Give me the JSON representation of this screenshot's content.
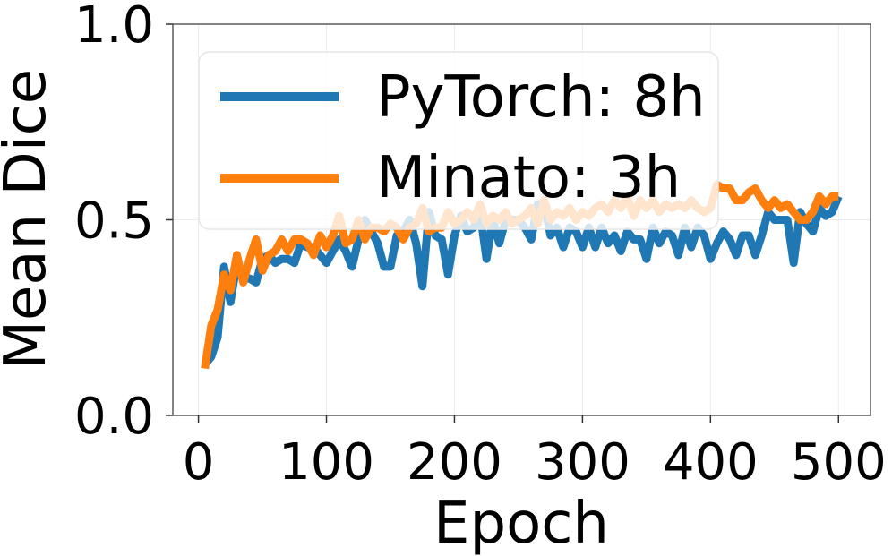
{
  "chart_data": {
    "type": "line",
    "title": "",
    "xlabel": "Epoch",
    "ylabel": "Mean Dice",
    "xlim": [
      -20,
      525
    ],
    "ylim": [
      0,
      1.0
    ],
    "x_ticks": [
      0,
      100,
      200,
      300,
      400,
      500
    ],
    "x_tick_labels": [
      "0",
      "100",
      "200",
      "300",
      "400",
      "500"
    ],
    "y_ticks": [
      0.0,
      0.5,
      1.0
    ],
    "y_tick_labels": [
      "0.0",
      "0.5",
      "1.0"
    ],
    "grid": true,
    "legend_position": "upper-left",
    "series": [
      {
        "name": "PyTorch: 8h",
        "color": "#1f77b4",
        "x": [
          5,
          10,
          15,
          20,
          25,
          30,
          35,
          40,
          45,
          50,
          55,
          60,
          65,
          70,
          75,
          80,
          85,
          90,
          95,
          100,
          105,
          110,
          115,
          120,
          125,
          130,
          135,
          140,
          145,
          150,
          155,
          160,
          165,
          170,
          175,
          180,
          185,
          190,
          195,
          200,
          205,
          210,
          215,
          220,
          225,
          230,
          235,
          240,
          245,
          250,
          255,
          260,
          265,
          270,
          275,
          280,
          285,
          290,
          295,
          300,
          305,
          310,
          315,
          320,
          325,
          330,
          335,
          340,
          345,
          350,
          355,
          360,
          365,
          370,
          375,
          380,
          385,
          390,
          395,
          400,
          405,
          410,
          415,
          420,
          425,
          430,
          435,
          440,
          445,
          450,
          455,
          460,
          465,
          470,
          475,
          480,
          485,
          490,
          495,
          500
        ],
        "y": [
          0.13,
          0.15,
          0.2,
          0.38,
          0.29,
          0.39,
          0.35,
          0.35,
          0.34,
          0.4,
          0.41,
          0.39,
          0.4,
          0.4,
          0.39,
          0.44,
          0.43,
          0.43,
          0.41,
          0.39,
          0.42,
          0.45,
          0.42,
          0.38,
          0.45,
          0.5,
          0.47,
          0.44,
          0.38,
          0.38,
          0.46,
          0.47,
          0.5,
          0.44,
          0.33,
          0.52,
          0.46,
          0.45,
          0.36,
          0.46,
          0.51,
          0.47,
          0.48,
          0.52,
          0.4,
          0.5,
          0.44,
          0.5,
          0.5,
          0.5,
          0.48,
          0.45,
          0.54,
          0.54,
          0.46,
          0.48,
          0.43,
          0.48,
          0.47,
          0.43,
          0.48,
          0.43,
          0.48,
          0.44,
          0.46,
          0.42,
          0.47,
          0.45,
          0.45,
          0.4,
          0.48,
          0.44,
          0.47,
          0.46,
          0.41,
          0.48,
          0.43,
          0.48,
          0.46,
          0.4,
          0.44,
          0.47,
          0.45,
          0.41,
          0.46,
          0.46,
          0.41,
          0.46,
          0.52,
          0.5,
          0.5,
          0.5,
          0.39,
          0.52,
          0.49,
          0.47,
          0.53,
          0.51,
          0.52,
          0.56
        ]
      },
      {
        "name": "Minato: 3h",
        "color": "#ff7f0e",
        "x": [
          5,
          10,
          15,
          20,
          25,
          30,
          35,
          40,
          45,
          50,
          55,
          60,
          65,
          70,
          75,
          80,
          85,
          90,
          95,
          100,
          105,
          110,
          115,
          120,
          125,
          130,
          135,
          140,
          145,
          150,
          155,
          160,
          165,
          170,
          175,
          180,
          185,
          190,
          195,
          200,
          205,
          210,
          215,
          220,
          225,
          230,
          235,
          240,
          245,
          250,
          255,
          260,
          265,
          270,
          275,
          280,
          285,
          290,
          295,
          300,
          305,
          310,
          315,
          320,
          325,
          330,
          335,
          340,
          345,
          350,
          355,
          360,
          365,
          370,
          375,
          380,
          385,
          390,
          395,
          400,
          405,
          410,
          415,
          420,
          425,
          430,
          435,
          440,
          445,
          450,
          455,
          460,
          465,
          470,
          475,
          480,
          485,
          490,
          495,
          500
        ],
        "y": [
          0.12,
          0.23,
          0.27,
          0.36,
          0.32,
          0.41,
          0.34,
          0.4,
          0.45,
          0.37,
          0.41,
          0.42,
          0.45,
          0.42,
          0.45,
          0.45,
          0.44,
          0.41,
          0.46,
          0.43,
          0.46,
          0.51,
          0.44,
          0.45,
          0.5,
          0.45,
          0.48,
          0.48,
          0.47,
          0.49,
          0.48,
          0.45,
          0.48,
          0.49,
          0.53,
          0.47,
          0.48,
          0.48,
          0.52,
          0.49,
          0.5,
          0.52,
          0.5,
          0.54,
          0.49,
          0.51,
          0.5,
          0.52,
          0.49,
          0.5,
          0.51,
          0.53,
          0.49,
          0.55,
          0.5,
          0.52,
          0.51,
          0.53,
          0.5,
          0.52,
          0.51,
          0.53,
          0.54,
          0.52,
          0.55,
          0.53,
          0.56,
          0.51,
          0.55,
          0.53,
          0.55,
          0.52,
          0.54,
          0.53,
          0.54,
          0.53,
          0.55,
          0.53,
          0.52,
          0.53,
          0.59,
          0.58,
          0.58,
          0.55,
          0.55,
          0.57,
          0.58,
          0.55,
          0.53,
          0.55,
          0.53,
          0.54,
          0.52,
          0.5,
          0.5,
          0.52,
          0.56,
          0.54,
          0.56,
          0.56
        ]
      }
    ]
  }
}
